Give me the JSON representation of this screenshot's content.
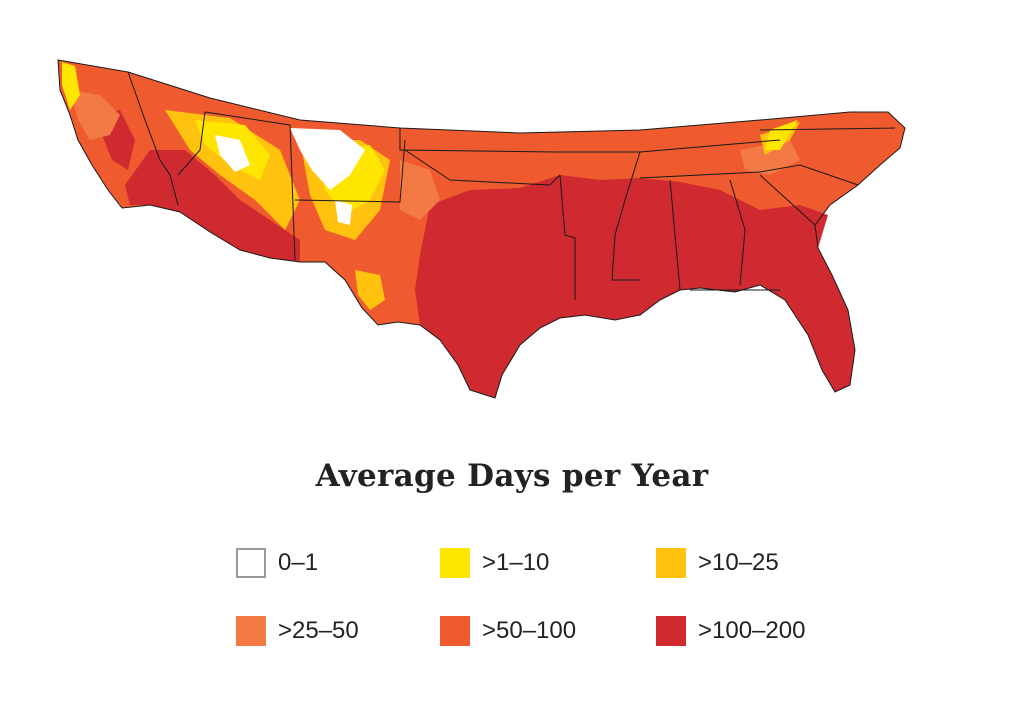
{
  "map": {
    "region": "southern-conterminous-united-states",
    "colors": {
      "0-1": "#ffffff",
      "1-10": "#ffe600",
      "10-25": "#ffc20e",
      "25-50": "#f37a45",
      "50-100": "#ef5a2e",
      "100-200": "#ce2a30",
      "state_borders": "#1a1a1a"
    }
  },
  "legend": {
    "title": "Average Days per Year",
    "items": [
      {
        "label": "0–1",
        "color": "#ffffff",
        "outlined": true
      },
      {
        "label": ">1–10",
        "color": "#ffe600"
      },
      {
        "label": ">10–25",
        "color": "#ffc20e"
      },
      {
        "label": ">25–50",
        "color": "#f37a45"
      },
      {
        "label": ">50–100",
        "color": "#ef5a2e"
      },
      {
        "label": ">100–200",
        "color": "#ce2a30"
      }
    ]
  }
}
